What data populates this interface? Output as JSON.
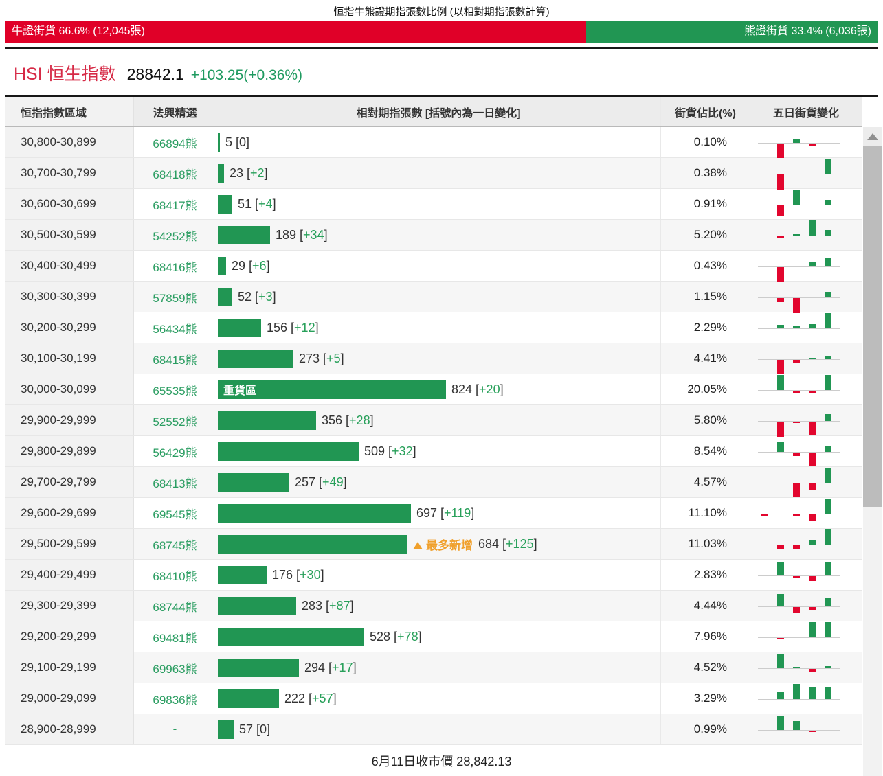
{
  "title": "恒指牛熊證期指張數比例 (以相對期指張數計算)",
  "ratio_bar": {
    "bull_label": "牛證街貨 66.6% (12,045張)",
    "bull_pct": 66.6,
    "bull_color": "#e00028",
    "bear_label": "熊證街貨 33.4% (6,036張)",
    "bear_pct": 33.4,
    "bear_color": "#219653"
  },
  "index_header": {
    "name": "HSI 恒生指數",
    "price": "28842.1",
    "change": "+103.25(+0.36%)"
  },
  "table": {
    "columns": [
      "恒指指數區域",
      "法興精選",
      "相對期指張數 [括號內為一日變化]",
      "街貨佔比(%)",
      "五日街貨變化"
    ],
    "max_value": 824,
    "rows": [
      {
        "range": "30,800-30,899",
        "code": "66894熊",
        "value": 5,
        "change": "0",
        "pct": "0.10%",
        "spark": [
          0,
          -22,
          5,
          -3,
          0
        ]
      },
      {
        "range": "30,700-30,799",
        "code": "68418熊",
        "value": 23,
        "change": "+2",
        "pct": "0.38%",
        "spark": [
          0,
          -22,
          0,
          0,
          22
        ]
      },
      {
        "range": "30,600-30,699",
        "code": "68417熊",
        "value": 51,
        "change": "+4",
        "pct": "0.91%",
        "spark": [
          0,
          -15,
          22,
          0,
          7
        ]
      },
      {
        "range": "30,500-30,599",
        "code": "54252熊",
        "value": 189,
        "change": "+34",
        "pct": "5.20%",
        "spark": [
          0,
          -3,
          2,
          22,
          8
        ]
      },
      {
        "range": "30,400-30,499",
        "code": "68416熊",
        "value": 29,
        "change": "+6",
        "pct": "0.43%",
        "spark": [
          0,
          -22,
          0,
          7,
          12
        ]
      },
      {
        "range": "30,300-30,399",
        "code": "57859熊",
        "value": 52,
        "change": "+3",
        "pct": "1.15%",
        "spark": [
          0,
          -6,
          -22,
          0,
          8
        ]
      },
      {
        "range": "30,200-30,299",
        "code": "56434熊",
        "value": 156,
        "change": "+12",
        "pct": "2.29%",
        "spark": [
          0,
          5,
          4,
          6,
          22
        ]
      },
      {
        "range": "30,100-30,199",
        "code": "68415熊",
        "value": 273,
        "change": "+5",
        "pct": "4.41%",
        "spark": [
          0,
          -20,
          -5,
          2,
          5
        ]
      },
      {
        "range": "30,000-30,099",
        "code": "65535熊",
        "value": 824,
        "change": "+20",
        "pct": "20.05%",
        "bar_tag": "重貨區",
        "spark": [
          0,
          22,
          -3,
          -4,
          22
        ]
      },
      {
        "range": "29,900-29,999",
        "code": "52552熊",
        "value": 356,
        "change": "+28",
        "pct": "5.80%",
        "spark": [
          0,
          -22,
          -2,
          -20,
          10
        ]
      },
      {
        "range": "29,800-29,899",
        "code": "56429熊",
        "value": 509,
        "change": "+32",
        "pct": "8.54%",
        "spark": [
          0,
          14,
          -5,
          -20,
          8
        ]
      },
      {
        "range": "29,700-29,799",
        "code": "68413熊",
        "value": 257,
        "change": "+49",
        "pct": "4.57%",
        "spark": [
          0,
          0,
          -20,
          -10,
          22
        ]
      },
      {
        "range": "29,600-29,699",
        "code": "69545熊",
        "value": 697,
        "change": "+119",
        "pct": "11.10%",
        "spark": [
          -3,
          0,
          -3,
          -10,
          22
        ]
      },
      {
        "range": "29,500-29,599",
        "code": "68745熊",
        "value": 684,
        "change": "+125",
        "pct": "11.03%",
        "annotation": "最多新增",
        "spark": [
          0,
          -6,
          -5,
          6,
          22
        ]
      },
      {
        "range": "29,400-29,499",
        "code": "68410熊",
        "value": 176,
        "change": "+30",
        "pct": "2.83%",
        "spark": [
          0,
          20,
          -3,
          -7,
          20
        ]
      },
      {
        "range": "29,300-29,399",
        "code": "68744熊",
        "value": 283,
        "change": "+87",
        "pct": "4.44%",
        "spark": [
          0,
          18,
          -9,
          -4,
          12
        ]
      },
      {
        "range": "29,200-29,299",
        "code": "69481熊",
        "value": 528,
        "change": "+78",
        "pct": "7.96%",
        "spark": [
          0,
          -2,
          0,
          22,
          22
        ]
      },
      {
        "range": "29,100-29,199",
        "code": "69963熊",
        "value": 294,
        "change": "+17",
        "pct": "4.52%",
        "spark": [
          0,
          20,
          2,
          -5,
          3
        ]
      },
      {
        "range": "29,000-29,099",
        "code": "69836熊",
        "value": 222,
        "change": "+57",
        "pct": "3.29%",
        "spark": [
          0,
          10,
          22,
          17,
          17
        ]
      },
      {
        "range": "28,900-28,999",
        "code": "-",
        "value": 57,
        "change": "0",
        "pct": "0.99%",
        "spark": [
          0,
          20,
          13,
          -2,
          0
        ]
      }
    ]
  },
  "footer": "6月11日收市價 28,842.13",
  "colors": {
    "bar_green": "#219653",
    "spark_red": "#e2062e",
    "text_green": "#28a05a",
    "annotation_orange": "#f0a02c",
    "hsi_red": "#d62a46"
  }
}
